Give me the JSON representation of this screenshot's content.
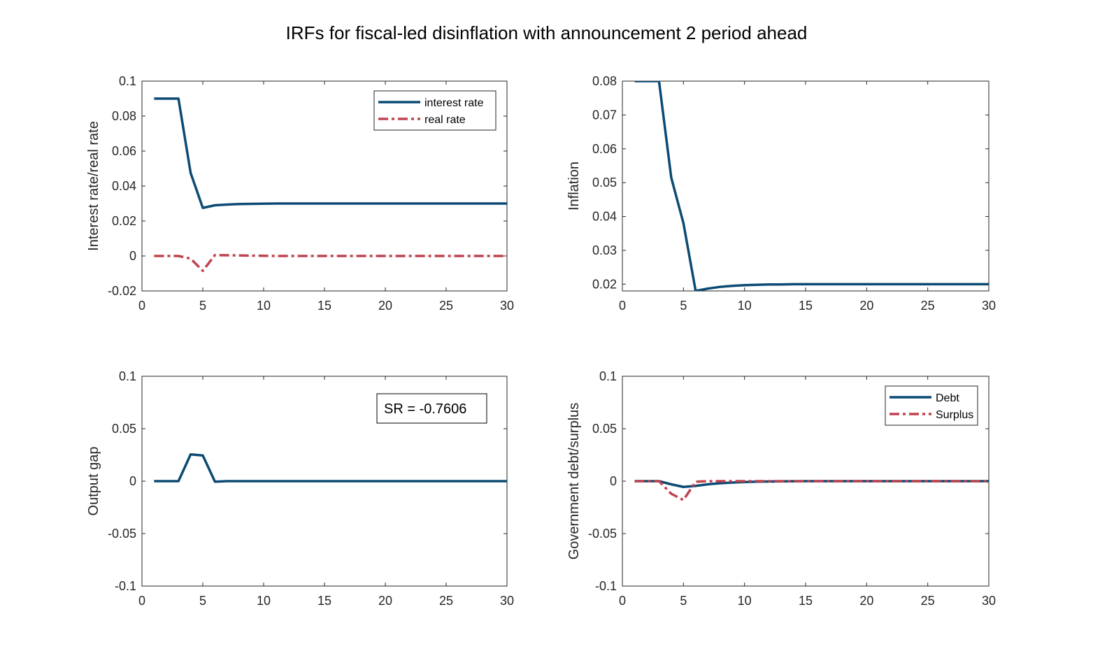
{
  "figure": {
    "title": "IRFs for fiscal-led disinflation with announcement 2 period ahead"
  },
  "colors": {
    "blue": "#0c4a73",
    "red": "#c0434f",
    "axis": "#262626"
  },
  "chart_data": [
    {
      "type": "line",
      "ylabel": "Interest rate/real rate",
      "xlim": [
        0,
        30
      ],
      "ylim": [
        -0.02,
        0.1
      ],
      "xticks": [
        "0",
        "5",
        "10",
        "15",
        "20",
        "25",
        "30"
      ],
      "yticks": [
        "-0.02",
        "0",
        "0.02",
        "0.04",
        "0.06",
        "0.08",
        "0.1"
      ],
      "legend": "top-right",
      "series": [
        {
          "name": "interest rate",
          "style": "solid",
          "color": "blue",
          "x": [
            1,
            2,
            3,
            4,
            5,
            6,
            7,
            8,
            9,
            10,
            11,
            12,
            13,
            14,
            15,
            16,
            17,
            18,
            19,
            20,
            21,
            22,
            23,
            24,
            25,
            26,
            27,
            28,
            29,
            30
          ],
          "y": [
            0.09,
            0.09,
            0.09,
            0.0475,
            0.0275,
            0.029,
            0.0294,
            0.0297,
            0.0298,
            0.0299,
            0.03,
            0.03,
            0.03,
            0.03,
            0.03,
            0.03,
            0.03,
            0.03,
            0.03,
            0.03,
            0.03,
            0.03,
            0.03,
            0.03,
            0.03,
            0.03,
            0.03,
            0.03,
            0.03,
            0.03
          ]
        },
        {
          "name": "real rate",
          "style": "dashdot",
          "color": "red",
          "x": [
            1,
            2,
            3,
            4,
            5,
            6,
            7,
            8,
            9,
            10,
            11,
            12,
            13,
            14,
            15,
            16,
            17,
            18,
            19,
            20,
            21,
            22,
            23,
            24,
            25,
            26,
            27,
            28,
            29,
            30
          ],
          "y": [
            0,
            0,
            0,
            -0.0015,
            -0.0085,
            0.0005,
            0.0004,
            0.0003,
            0.0002,
            0.0001,
            0,
            0,
            0,
            0,
            0,
            0,
            0,
            0,
            0,
            0,
            0,
            0,
            0,
            0,
            0,
            0,
            0,
            0,
            0,
            0
          ]
        }
      ]
    },
    {
      "type": "line",
      "ylabel": "Inflation",
      "xlim": [
        0,
        30
      ],
      "ylim": [
        0.018,
        0.08
      ],
      "xticks": [
        "0",
        "5",
        "10",
        "15",
        "20",
        "25",
        "30"
      ],
      "yticks": [
        "0.02",
        "0.03",
        "0.04",
        "0.05",
        "0.06",
        "0.07",
        "0.08"
      ],
      "ytick_values": [
        0.02,
        0.03,
        0.04,
        0.05,
        0.06,
        0.07,
        0.08
      ],
      "series": [
        {
          "style": "solid",
          "color": "blue",
          "x": [
            1,
            2,
            3,
            4,
            5,
            6,
            7,
            8,
            9,
            10,
            11,
            12,
            13,
            14,
            15,
            16,
            17,
            18,
            19,
            20,
            21,
            22,
            23,
            24,
            25,
            26,
            27,
            28,
            29,
            30
          ],
          "y": [
            0.08,
            0.08,
            0.08,
            0.0515,
            0.038,
            0.018,
            0.0187,
            0.0192,
            0.0195,
            0.0197,
            0.0198,
            0.0199,
            0.0199,
            0.02,
            0.02,
            0.02,
            0.02,
            0.02,
            0.02,
            0.02,
            0.02,
            0.02,
            0.02,
            0.02,
            0.02,
            0.02,
            0.02,
            0.02,
            0.02,
            0.02
          ]
        }
      ]
    },
    {
      "type": "line",
      "ylabel": "Output gap",
      "xlim": [
        0,
        30
      ],
      "ylim": [
        -0.1,
        0.1
      ],
      "xticks": [
        "0",
        "5",
        "10",
        "15",
        "20",
        "25",
        "30"
      ],
      "yticks": [
        "-0.1",
        "-0.05",
        "0",
        "0.05",
        "0.1"
      ],
      "annotation": "SR = -0.7606",
      "series": [
        {
          "style": "solid",
          "color": "blue",
          "x": [
            1,
            2,
            3,
            4,
            5,
            6,
            7,
            8,
            9,
            10,
            11,
            12,
            13,
            14,
            15,
            16,
            17,
            18,
            19,
            20,
            21,
            22,
            23,
            24,
            25,
            26,
            27,
            28,
            29,
            30
          ],
          "y": [
            0,
            0,
            0,
            0.0255,
            0.0245,
            -0.0005,
            0,
            0,
            0,
            0,
            0,
            0,
            0,
            0,
            0,
            0,
            0,
            0,
            0,
            0,
            0,
            0,
            0,
            0,
            0,
            0,
            0,
            0,
            0,
            0
          ]
        }
      ]
    },
    {
      "type": "line",
      "ylabel": "Government debt/surplus",
      "xlim": [
        0,
        30
      ],
      "ylim": [
        -0.1,
        0.1
      ],
      "xticks": [
        "0",
        "5",
        "10",
        "15",
        "20",
        "25",
        "30"
      ],
      "yticks": [
        "-0.1",
        "-0.05",
        "0",
        "0.05",
        "0.1"
      ],
      "legend": "top-right",
      "series": [
        {
          "name": "Debt",
          "style": "solid",
          "color": "blue",
          "x": [
            1,
            2,
            3,
            4,
            5,
            6,
            7,
            8,
            9,
            10,
            11,
            12,
            13,
            14,
            15,
            16,
            17,
            18,
            19,
            20,
            21,
            22,
            23,
            24,
            25,
            26,
            27,
            28,
            29,
            30
          ],
          "y": [
            0,
            0,
            0,
            -0.003,
            -0.0055,
            -0.0045,
            -0.003,
            -0.002,
            -0.0013,
            -0.0008,
            -0.0005,
            -0.0003,
            -0.0002,
            -0.0001,
            0,
            0,
            0,
            0,
            0,
            0,
            0,
            0,
            0,
            0,
            0,
            0,
            0,
            0,
            0,
            0
          ]
        },
        {
          "name": "Surplus",
          "style": "dashdot",
          "color": "red",
          "x": [
            1,
            2,
            3,
            4,
            5,
            6,
            7,
            8,
            9,
            10,
            11,
            12,
            13,
            14,
            15,
            16,
            17,
            18,
            19,
            20,
            21,
            22,
            23,
            24,
            25,
            26,
            27,
            28,
            29,
            30
          ],
          "y": [
            0,
            0,
            0,
            -0.012,
            -0.018,
            -0.0005,
            0,
            0,
            0,
            0,
            0,
            0,
            0,
            0,
            0,
            0,
            0,
            0,
            0,
            0,
            0,
            0,
            0,
            0,
            0,
            0,
            0,
            0,
            0,
            0
          ]
        }
      ]
    }
  ]
}
